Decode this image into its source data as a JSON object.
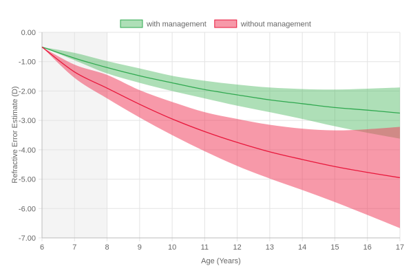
{
  "chart_data": {
    "type": "area",
    "title": "",
    "xlabel": "Age (Years)",
    "ylabel": "Refractive Error Estimate (D)",
    "xlim": [
      6,
      17
    ],
    "ylim": [
      -7,
      0
    ],
    "x": [
      6,
      7,
      8,
      9,
      10,
      11,
      12,
      13,
      14,
      15,
      16,
      17
    ],
    "x_ticks": [
      "6",
      "7",
      "8",
      "9",
      "10",
      "11",
      "12",
      "13",
      "14",
      "15",
      "16",
      "17"
    ],
    "y_ticks": [
      "0.00",
      "-1.00",
      "-2.00",
      "-3.00",
      "-4.00",
      "-5.00",
      "-6.00",
      "-7.00"
    ],
    "grid": true,
    "legend_position": "top",
    "highlight_range": [
      6,
      8
    ],
    "series": [
      {
        "name": "with management",
        "color": "#2fa84f",
        "fill": "rgba(75,185,95,0.45)",
        "mean": [
          -0.5,
          -0.88,
          -1.2,
          -1.48,
          -1.72,
          -1.95,
          -2.13,
          -2.3,
          -2.43,
          -2.56,
          -2.65,
          -2.75
        ],
        "upper": [
          -0.5,
          -0.7,
          -0.98,
          -1.23,
          -1.48,
          -1.65,
          -1.78,
          -1.88,
          -1.93,
          -1.95,
          -1.92,
          -1.88
        ],
        "lower": [
          -0.5,
          -0.95,
          -1.4,
          -1.72,
          -2.0,
          -2.25,
          -2.5,
          -2.72,
          -2.95,
          -3.2,
          -3.42,
          -3.62
        ]
      },
      {
        "name": "without management",
        "color": "#e8173b",
        "fill": "rgba(240,60,90,0.52)",
        "mean": [
          -0.5,
          -1.35,
          -1.9,
          -2.45,
          -2.95,
          -3.38,
          -3.75,
          -4.07,
          -4.33,
          -4.57,
          -4.77,
          -4.95
        ],
        "upper": [
          -0.5,
          -1.1,
          -1.45,
          -1.97,
          -2.37,
          -2.72,
          -2.95,
          -3.15,
          -3.28,
          -3.34,
          -3.3,
          -3.22
        ],
        "lower": [
          -0.5,
          -1.55,
          -2.25,
          -2.9,
          -3.5,
          -4.05,
          -4.55,
          -4.98,
          -5.37,
          -5.78,
          -6.22,
          -6.67
        ]
      }
    ]
  }
}
